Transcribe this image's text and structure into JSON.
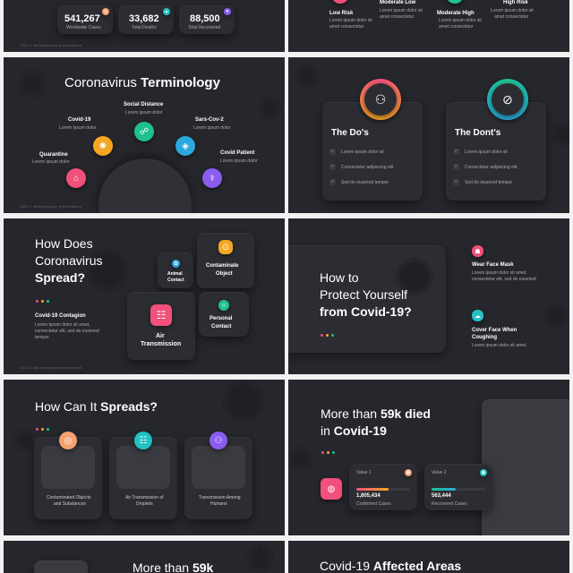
{
  "colors": {
    "bg": "#26272c",
    "pink": "#f0507a",
    "orange": "#f5a623",
    "green": "#1fbf8f",
    "blue": "#2aa8e0",
    "purple": "#8a5cf0",
    "teal": "#22c1c3",
    "red": "#ff6a6a"
  },
  "footer_text": "2022 // Multipurpose presentation",
  "stats": [
    {
      "value": "541,267",
      "label": "Worldwide Cases",
      "icon": "globe-icon"
    },
    {
      "value": "33,682",
      "label": "Total Deaths",
      "icon": "chart-icon"
    },
    {
      "value": "88,500",
      "label": "Total Recovered",
      "icon": "heart-icon"
    }
  ],
  "risk": [
    {
      "title": "Low Risk",
      "body": "Lorem ipsum dolor sit amet consectetur"
    },
    {
      "title": "Moderate Low",
      "body": "Lorem ipsum dolor sit amet consectetur"
    },
    {
      "title": "Moderate High",
      "body": "Lorem ipsum dolor sit amet consectetur"
    },
    {
      "title": "High Risk",
      "body": "Lorem ipsum dolor sit amet consectetur"
    }
  ],
  "terminology": {
    "title_light": "Coronavirus ",
    "title_bold": "Terminology",
    "items": [
      {
        "title": "Quarantine",
        "body": "Lorem ipsum dolor"
      },
      {
        "title": "Covid-19",
        "body": "Lorem ipsum dolor"
      },
      {
        "title": "Social Distance",
        "body": "Lorem ipsum dolor"
      },
      {
        "title": "Sars-Cov-2",
        "body": "Lorem ipsum dolor"
      },
      {
        "title": "Covid Patient",
        "body": "Lorem ipsum dolor"
      }
    ]
  },
  "dos": {
    "do_title": "The Do's",
    "dont_title": "The Dont's",
    "items": [
      "Lorem ipsum dolor sit",
      "Consectetur adipiscing elit",
      "Sed do eiusmod tempor"
    ],
    "dont_items": [
      "Lorem ipsum dolor sit",
      "Consectetur adipiscing elit",
      "Sed do eiusmod tempor"
    ]
  },
  "spread": {
    "title1": "How Does",
    "title2": "Coronavirus",
    "title3": "Spread?",
    "contagion_title": "Covid-19 Contagion",
    "contagion_body1": "Lorem ipsum dolor sit amet,",
    "contagion_body2": "consectetur elit, sed do eiusmod",
    "contagion_body3": "tempor.",
    "items": [
      {
        "label1": "Animal",
        "label2": "Contact"
      },
      {
        "label1": "Contaminate",
        "label2": "Object"
      },
      {
        "label1": "Air",
        "label2": "Transmission"
      },
      {
        "label1": "Personal",
        "label2": "Contact"
      }
    ]
  },
  "protect": {
    "title1": "How to",
    "title2": "Protect Yourself",
    "title3": "from Covid-19?",
    "items": [
      {
        "title": "Wear Face Mask",
        "body1": "Lorem ipsum dolor sit amet,",
        "body2": "consectetur elit, sed do eiusmod"
      },
      {
        "title1": "Cover Face When",
        "title2": "Coughing",
        "body1": "Lorem ipsum dolor sit amet."
      }
    ]
  },
  "spreads": {
    "title_light": "How Can It ",
    "title_bold": "Spreads?",
    "items": [
      {
        "l1": "Contaminated Objects",
        "l2": "and Substances"
      },
      {
        "l1": "Air Transmission of",
        "l2": "Droplets"
      },
      {
        "l1": "Transmission Among",
        "l2": "Humans"
      }
    ]
  },
  "died": {
    "t1_light": "More than ",
    "t1_bold": "59k died",
    "t2_light": "in ",
    "t2_bold": "Covid-19",
    "values": [
      {
        "label": "Value 1",
        "number": "1,805,434",
        "caption": "Confirmed Cases",
        "fill": 0.6
      },
      {
        "label": "Value 2",
        "number": "563,444",
        "caption": "Recovered Cases",
        "fill": 0.45
      }
    ]
  },
  "bottom": {
    "left_light": "More than ",
    "left_bold": "59k",
    "right_light": "Covid-19 ",
    "right_bold": "Affected Areas"
  }
}
